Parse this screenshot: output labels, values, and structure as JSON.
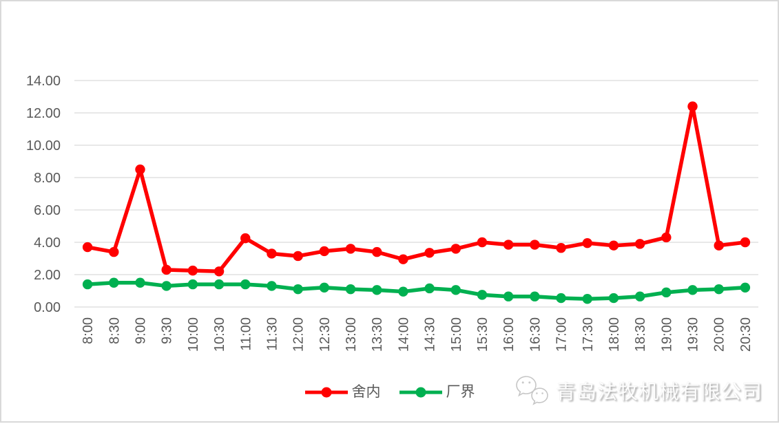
{
  "chart_data": {
    "type": "line",
    "title": "",
    "xlabel": "",
    "ylabel": "",
    "categories": [
      "8:00",
      "8:30",
      "9:00",
      "9:30",
      "10:00",
      "10:30",
      "11:00",
      "11:30",
      "12:00",
      "12:30",
      "13:00",
      "13:30",
      "14:00",
      "14:30",
      "15:00",
      "15:30",
      "16:00",
      "16:30",
      "17:00",
      "17:30",
      "18:00",
      "18:30",
      "19:00",
      "19:30",
      "20:00",
      "20:30"
    ],
    "series": [
      {
        "name": "舍内",
        "color": "#ff0000",
        "marker": "circle",
        "values": [
          3.7,
          3.4,
          8.5,
          2.3,
          2.25,
          2.2,
          4.25,
          3.3,
          3.15,
          3.45,
          3.6,
          3.4,
          2.95,
          3.35,
          3.6,
          4.0,
          3.85,
          3.85,
          3.65,
          3.95,
          3.8,
          3.9,
          4.3,
          12.4,
          3.8,
          4.0
        ]
      },
      {
        "name": "厂界",
        "color": "#00b050",
        "marker": "circle",
        "values": [
          1.4,
          1.5,
          1.5,
          1.3,
          1.4,
          1.4,
          1.4,
          1.3,
          1.1,
          1.2,
          1.1,
          1.05,
          0.95,
          1.15,
          1.05,
          0.75,
          0.65,
          0.65,
          0.55,
          0.5,
          0.55,
          0.65,
          0.9,
          1.05,
          1.1,
          1.2
        ]
      }
    ],
    "ylim": [
      0,
      14
    ],
    "ytick_step": 2,
    "ytick_labels": [
      "0.00",
      "2.00",
      "4.00",
      "6.00",
      "8.00",
      "10.00",
      "12.00",
      "14.00"
    ],
    "grid": "horizontal",
    "gridline_color": "#d9d9d9",
    "axis_label_color": "#595959",
    "legend_position": "bottom"
  },
  "watermark": {
    "text": "青岛法牧机械有限公司",
    "icon": "wechat-icon"
  }
}
